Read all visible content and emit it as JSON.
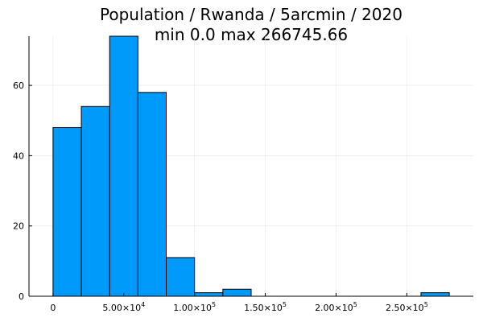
{
  "chart_data": {
    "type": "bar",
    "title_line1": "Population / Rwanda / 5arcmin / 2020",
    "title_line2": "min 0.0  max 266745.66",
    "xlabel": "",
    "ylabel": "",
    "bin_width": 20000,
    "bins": [
      {
        "x0": 0,
        "x1": 20000,
        "count": 48
      },
      {
        "x0": 20000,
        "x1": 40000,
        "count": 54
      },
      {
        "x0": 40000,
        "x1": 60000,
        "count": 74
      },
      {
        "x0": 60000,
        "x1": 80000,
        "count": 58
      },
      {
        "x0": 80000,
        "x1": 100000,
        "count": 11
      },
      {
        "x0": 100000,
        "x1": 120000,
        "count": 1
      },
      {
        "x0": 120000,
        "x1": 140000,
        "count": 2
      },
      {
        "x0": 140000,
        "x1": 160000,
        "count": 0
      },
      {
        "x0": 160000,
        "x1": 180000,
        "count": 0
      },
      {
        "x0": 180000,
        "x1": 200000,
        "count": 0
      },
      {
        "x0": 200000,
        "x1": 220000,
        "count": 0
      },
      {
        "x0": 220000,
        "x1": 240000,
        "count": 0
      },
      {
        "x0": 240000,
        "x1": 260000,
        "count": 0
      },
      {
        "x0": 260000,
        "x1": 280000,
        "count": 1
      }
    ],
    "xlim": [
      -17000,
      297000
    ],
    "ylim": [
      0,
      74
    ],
    "x_ticks": [
      {
        "value": 0,
        "label": "0"
      },
      {
        "value": 50000,
        "label": "5.00×10",
        "exp": "4"
      },
      {
        "value": 100000,
        "label": "1.00×10",
        "exp": "5"
      },
      {
        "value": 150000,
        "label": "1.50×10",
        "exp": "5"
      },
      {
        "value": 200000,
        "label": "2.00×10",
        "exp": "5"
      },
      {
        "value": 250000,
        "label": "2.50×10",
        "exp": "5"
      }
    ],
    "y_ticks": [
      {
        "value": 0,
        "label": "0"
      },
      {
        "value": 20,
        "label": "20"
      },
      {
        "value": 40,
        "label": "40"
      },
      {
        "value": 60,
        "label": "60"
      }
    ],
    "grid": true,
    "legend": "none",
    "bar_color": "#009AFA",
    "bar_stroke": "#000000"
  }
}
